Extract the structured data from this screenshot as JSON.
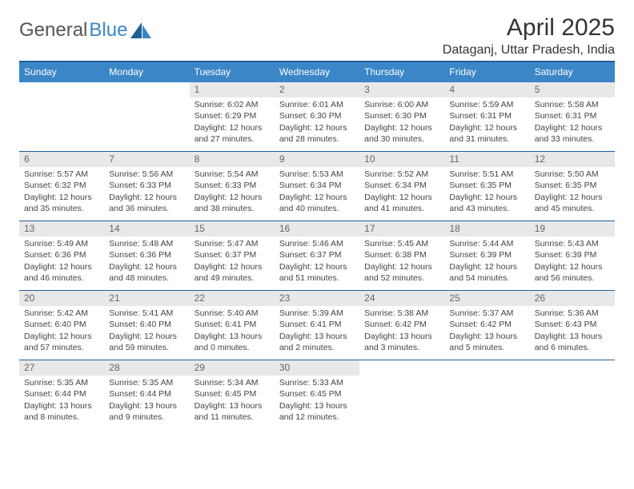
{
  "logo": {
    "general": "General",
    "blue": "Blue"
  },
  "title": "April 2025",
  "location": "Dataganj, Uttar Pradesh, India",
  "dow": [
    "Sunday",
    "Monday",
    "Tuesday",
    "Wednesday",
    "Thursday",
    "Friday",
    "Saturday"
  ],
  "colors": {
    "header_blue": "#3b86c6",
    "line_blue": "#1f5f98",
    "daynum_gray": "#e8e8e8",
    "background": "#ffffff",
    "text": "#222222"
  },
  "calendar": {
    "type": "table",
    "month": 4,
    "year": 2025,
    "first_day_index": 2,
    "days_in_month": 30
  },
  "days": {
    "1": {
      "sunrise": "6:02 AM",
      "sunset": "6:29 PM",
      "daylight": "12 hours and 27 minutes."
    },
    "2": {
      "sunrise": "6:01 AM",
      "sunset": "6:30 PM",
      "daylight": "12 hours and 28 minutes."
    },
    "3": {
      "sunrise": "6:00 AM",
      "sunset": "6:30 PM",
      "daylight": "12 hours and 30 minutes."
    },
    "4": {
      "sunrise": "5:59 AM",
      "sunset": "6:31 PM",
      "daylight": "12 hours and 31 minutes."
    },
    "5": {
      "sunrise": "5:58 AM",
      "sunset": "6:31 PM",
      "daylight": "12 hours and 33 minutes."
    },
    "6": {
      "sunrise": "5:57 AM",
      "sunset": "6:32 PM",
      "daylight": "12 hours and 35 minutes."
    },
    "7": {
      "sunrise": "5:56 AM",
      "sunset": "6:33 PM",
      "daylight": "12 hours and 36 minutes."
    },
    "8": {
      "sunrise": "5:54 AM",
      "sunset": "6:33 PM",
      "daylight": "12 hours and 38 minutes."
    },
    "9": {
      "sunrise": "5:53 AM",
      "sunset": "6:34 PM",
      "daylight": "12 hours and 40 minutes."
    },
    "10": {
      "sunrise": "5:52 AM",
      "sunset": "6:34 PM",
      "daylight": "12 hours and 41 minutes."
    },
    "11": {
      "sunrise": "5:51 AM",
      "sunset": "6:35 PM",
      "daylight": "12 hours and 43 minutes."
    },
    "12": {
      "sunrise": "5:50 AM",
      "sunset": "6:35 PM",
      "daylight": "12 hours and 45 minutes."
    },
    "13": {
      "sunrise": "5:49 AM",
      "sunset": "6:36 PM",
      "daylight": "12 hours and 46 minutes."
    },
    "14": {
      "sunrise": "5:48 AM",
      "sunset": "6:36 PM",
      "daylight": "12 hours and 48 minutes."
    },
    "15": {
      "sunrise": "5:47 AM",
      "sunset": "6:37 PM",
      "daylight": "12 hours and 49 minutes."
    },
    "16": {
      "sunrise": "5:46 AM",
      "sunset": "6:37 PM",
      "daylight": "12 hours and 51 minutes."
    },
    "17": {
      "sunrise": "5:45 AM",
      "sunset": "6:38 PM",
      "daylight": "12 hours and 52 minutes."
    },
    "18": {
      "sunrise": "5:44 AM",
      "sunset": "6:39 PM",
      "daylight": "12 hours and 54 minutes."
    },
    "19": {
      "sunrise": "5:43 AM",
      "sunset": "6:39 PM",
      "daylight": "12 hours and 56 minutes."
    },
    "20": {
      "sunrise": "5:42 AM",
      "sunset": "6:40 PM",
      "daylight": "12 hours and 57 minutes."
    },
    "21": {
      "sunrise": "5:41 AM",
      "sunset": "6:40 PM",
      "daylight": "12 hours and 59 minutes."
    },
    "22": {
      "sunrise": "5:40 AM",
      "sunset": "6:41 PM",
      "daylight": "13 hours and 0 minutes."
    },
    "23": {
      "sunrise": "5:39 AM",
      "sunset": "6:41 PM",
      "daylight": "13 hours and 2 minutes."
    },
    "24": {
      "sunrise": "5:38 AM",
      "sunset": "6:42 PM",
      "daylight": "13 hours and 3 minutes."
    },
    "25": {
      "sunrise": "5:37 AM",
      "sunset": "6:42 PM",
      "daylight": "13 hours and 5 minutes."
    },
    "26": {
      "sunrise": "5:36 AM",
      "sunset": "6:43 PM",
      "daylight": "13 hours and 6 minutes."
    },
    "27": {
      "sunrise": "5:35 AM",
      "sunset": "6:44 PM",
      "daylight": "13 hours and 8 minutes."
    },
    "28": {
      "sunrise": "5:35 AM",
      "sunset": "6:44 PM",
      "daylight": "13 hours and 9 minutes."
    },
    "29": {
      "sunrise": "5:34 AM",
      "sunset": "6:45 PM",
      "daylight": "13 hours and 11 minutes."
    },
    "30": {
      "sunrise": "5:33 AM",
      "sunset": "6:45 PM",
      "daylight": "13 hours and 12 minutes."
    }
  },
  "labels": {
    "sunrise": "Sunrise: ",
    "sunset": "Sunset: ",
    "daylight": "Daylight: "
  }
}
